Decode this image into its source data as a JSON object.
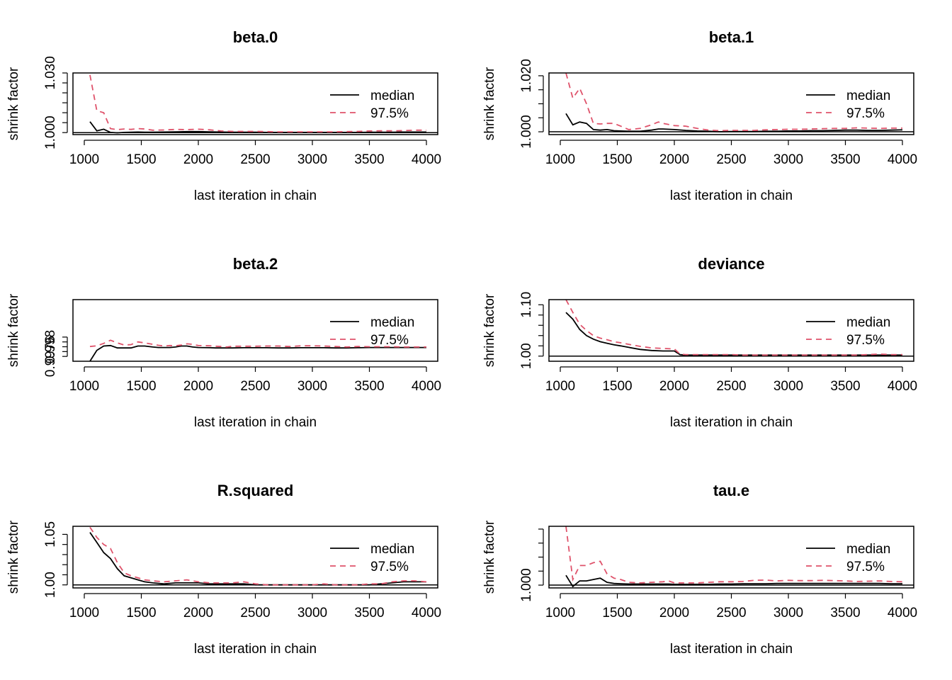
{
  "figure": {
    "colors": {
      "median": "#000000",
      "q975": "#DF536B",
      "axis": "#000000",
      "background": "#ffffff"
    }
  },
  "chart_data": [
    {
      "type": "line",
      "title": "beta.0",
      "xlabel": "last iteration in chain",
      "ylabel": "shrink factor",
      "xlim": [
        1000,
        4000
      ],
      "ylim": [
        0.999,
        1.03
      ],
      "xticks": [
        1000,
        1500,
        2000,
        2500,
        3000,
        3500,
        4000
      ],
      "yticks": [
        1.0,
        1.005,
        1.01,
        1.015,
        1.02,
        1.025,
        1.03
      ],
      "ytick_labels": [
        "1.000",
        "",
        "",
        "",
        "",
        "",
        "1.030"
      ],
      "hline": 1,
      "legend": {
        "position": "top-right",
        "entries": [
          "median",
          "97.5%"
        ]
      },
      "x": [
        1050,
        1110,
        1170,
        1230,
        1290,
        1350,
        1410,
        1470,
        1530,
        1600,
        1700,
        1800,
        1900,
        2000,
        2100,
        2200,
        2300,
        2400,
        2500,
        2600,
        2700,
        2800,
        2900,
        3000,
        3100,
        3200,
        3300,
        3400,
        3500,
        3600,
        3700,
        3800,
        3900,
        4000
      ],
      "series": [
        {
          "name": "median",
          "values": [
            1.0055,
            1.0009,
            1.0017,
            1.0001,
            0.9999,
            1.0001,
            1.0002,
            1.0003,
            1.0002,
            1.0002,
            1.0003,
            1.0004,
            1.0005,
            1.0005,
            1.0004,
            1.0003,
            1.0002,
            1.0002,
            1.0002,
            1.0001,
            1.0001,
            1.0001,
            1.0001,
            1.0001,
            1.0001,
            1.0001,
            1.0001,
            1.0001,
            1.0002,
            1.0002,
            1.0002,
            1.0003,
            1.0003,
            1.0003
          ]
        },
        {
          "name": "97.5%",
          "values": [
            1.029,
            1.011,
            1.01,
            1.002,
            1.0015,
            1.0018,
            1.0016,
            1.002,
            1.0018,
            1.0012,
            1.0013,
            1.0016,
            1.0015,
            1.0017,
            1.0014,
            1.0008,
            1.0006,
            1.0006,
            1.0006,
            1.0005,
            1.0004,
            1.0004,
            1.0004,
            1.0004,
            1.0004,
            1.0004,
            1.0005,
            1.0006,
            1.0008,
            1.0009,
            1.0009,
            1.001,
            1.0012,
            1.0012
          ]
        }
      ]
    },
    {
      "type": "line",
      "title": "beta.1",
      "xlabel": "last iteration in chain",
      "ylabel": "shrink factor",
      "xlim": [
        1000,
        4000
      ],
      "ylim": [
        0.999,
        1.021
      ],
      "xticks": [
        1000,
        1500,
        2000,
        2500,
        3000,
        3500,
        4000
      ],
      "yticks": [
        1.0,
        1.005,
        1.01,
        1.015,
        1.02
      ],
      "ytick_labels": [
        "1.000",
        "",
        "",
        "",
        "1.020"
      ],
      "hline": 1,
      "legend": {
        "position": "top-right",
        "entries": [
          "median",
          "97.5%"
        ]
      },
      "x": [
        1050,
        1110,
        1170,
        1230,
        1290,
        1350,
        1410,
        1470,
        1530,
        1600,
        1700,
        1800,
        1860,
        1900,
        2000,
        2100,
        2200,
        2300,
        2400,
        2500,
        2600,
        2700,
        2800,
        2900,
        3000,
        3100,
        3200,
        3300,
        3400,
        3500,
        3600,
        3700,
        3800,
        3900,
        4000
      ],
      "series": [
        {
          "name": "median",
          "values": [
            1.0065,
            1.0025,
            1.0035,
            1.003,
            1.0008,
            1.0006,
            1.0008,
            1.0004,
            1.0003,
            1.0002,
            1.0002,
            1.0006,
            1.001,
            1.001,
            1.0008,
            1.0005,
            1.0003,
            1.0002,
            1.0,
            1.0001,
            1.0001,
            1.0001,
            1.0002,
            1.0002,
            1.0003,
            1.0003,
            1.0004,
            1.0004,
            1.0005,
            1.0006,
            1.0006,
            1.0005,
            1.0005,
            1.0006,
            1.0007
          ]
        },
        {
          "name": "97.5%",
          "values": [
            1.021,
            1.012,
            1.0155,
            1.01,
            1.003,
            1.0028,
            1.003,
            1.003,
            1.002,
            1.0008,
            1.0012,
            1.0025,
            1.0035,
            1.003,
            1.0022,
            1.002,
            1.0012,
            1.0006,
            1.0004,
            1.0005,
            1.0005,
            1.0005,
            1.0007,
            1.0008,
            1.0009,
            1.0009,
            1.001,
            1.0011,
            1.0012,
            1.0012,
            1.0014,
            1.0013,
            1.0012,
            1.0013,
            1.0013
          ]
        }
      ]
    },
    {
      "type": "line",
      "title": "beta.2",
      "xlabel": "last iteration in chain",
      "ylabel": "shrink factor",
      "xlim": [
        1000,
        4000
      ],
      "ylim": [
        0.9974,
        0.99995
      ],
      "xticks": [
        1000,
        1500,
        2000,
        2500,
        3000,
        3500,
        4000
      ],
      "yticks": [
        0.9976,
        0.9978,
        0.998,
        0.9982,
        0.9984
      ],
      "ytick_labels": [
        "0.9976",
        "",
        "0.998",
        "",
        ""
      ],
      "hline": 1,
      "legend": {
        "position": "top-right",
        "entries": [
          "median",
          "97.5%"
        ]
      },
      "x": [
        1050,
        1110,
        1170,
        1230,
        1290,
        1350,
        1410,
        1470,
        1530,
        1600,
        1650,
        1700,
        1750,
        1800,
        1850,
        1900,
        1950,
        2000,
        2100,
        2150,
        2200,
        2250,
        2300,
        2400,
        2500,
        2600,
        2700,
        2800,
        2900,
        3000,
        3100,
        3200,
        3300,
        3400,
        3500,
        3600,
        3700,
        3800,
        3900,
        4000
      ],
      "series": [
        {
          "name": "median",
          "values": [
            0.9974,
            0.99785,
            0.99803,
            0.99805,
            0.99795,
            0.99795,
            0.99795,
            0.99803,
            0.99803,
            0.99799,
            0.99797,
            0.99797,
            0.99797,
            0.99799,
            0.99803,
            0.99803,
            0.99799,
            0.99797,
            0.99796,
            0.99795,
            0.99795,
            0.99795,
            0.99795,
            0.99796,
            0.99796,
            0.99796,
            0.99795,
            0.99795,
            0.99796,
            0.99796,
            0.99796,
            0.99795,
            0.99795,
            0.99796,
            0.99797,
            0.99797,
            0.99797,
            0.99797,
            0.99797,
            0.99797
          ]
        },
        {
          "name": "97.5%",
          "values": [
            0.99801,
            0.99804,
            0.99814,
            0.99827,
            0.99816,
            0.99807,
            0.99809,
            0.9982,
            0.99816,
            0.9981,
            0.99806,
            0.99803,
            0.99805,
            0.99804,
            0.99807,
            0.99812,
            0.9981,
            0.99805,
            0.99804,
            0.99802,
            0.99801,
            0.99799,
            0.99802,
            0.99802,
            0.99802,
            0.99803,
            0.99803,
            0.99801,
            0.99804,
            0.99804,
            0.99803,
            0.99801,
            0.99799,
            0.99801,
            0.998,
            0.998,
            0.998,
            0.99799,
            0.99799,
            0.99799
          ]
        }
      ]
    },
    {
      "type": "line",
      "title": "deviance",
      "xlabel": "last iteration in chain",
      "ylabel": "shrink factor",
      "xlim": [
        1000,
        4000
      ],
      "ylim": [
        0.99,
        1.11
      ],
      "xticks": [
        1000,
        1500,
        2000,
        2500,
        3000,
        3500,
        4000
      ],
      "yticks": [
        1.0,
        1.02,
        1.04,
        1.06,
        1.08,
        1.1
      ],
      "ytick_labels": [
        "1.00",
        "",
        "",
        "",
        "",
        "1.10"
      ],
      "hline": 1,
      "legend": {
        "position": "top-right",
        "entries": [
          "median",
          "97.5%"
        ]
      },
      "x": [
        1050,
        1110,
        1170,
        1230,
        1290,
        1350,
        1410,
        1470,
        1530,
        1600,
        1700,
        1800,
        1900,
        2000,
        2050,
        2100,
        2200,
        2300,
        2400,
        2500,
        2600,
        2700,
        2800,
        2900,
        3000,
        3100,
        3200,
        3300,
        3400,
        3500,
        3600,
        3700,
        3800,
        3900,
        4000
      ],
      "series": [
        {
          "name": "median",
          "values": [
            1.085,
            1.072,
            1.052,
            1.04,
            1.033,
            1.028,
            1.025,
            1.022,
            1.02,
            1.017,
            1.013,
            1.011,
            1.01,
            1.01,
            1.003,
            1.002,
            1.002,
            1.002,
            1.002,
            1.002,
            1.002,
            1.002,
            1.002,
            1.002,
            1.002,
            1.002,
            1.002,
            1.002,
            1.002,
            1.002,
            1.002,
            1.002,
            1.002,
            1.002,
            1.002
          ]
        },
        {
          "name": "97.5%",
          "values": [
            1.11,
            1.085,
            1.062,
            1.05,
            1.04,
            1.035,
            1.032,
            1.028,
            1.026,
            1.023,
            1.019,
            1.016,
            1.015,
            1.014,
            1.004,
            1.003,
            1.003,
            1.003,
            1.003,
            1.003,
            1.002,
            1.002,
            1.002,
            1.002,
            1.002,
            1.002,
            1.002,
            1.002,
            1.002,
            1.002,
            1.002,
            1.003,
            1.004,
            1.003,
            1.003
          ]
        }
      ]
    },
    {
      "type": "line",
      "title": "R.squared",
      "xlabel": "last iteration in chain",
      "ylabel": "shrink factor",
      "xlim": [
        1000,
        4000
      ],
      "ylim": [
        0.997,
        1.058
      ],
      "xticks": [
        1000,
        1500,
        2000,
        2500,
        3000,
        3500,
        4000
      ],
      "yticks": [
        1.0,
        1.01,
        1.02,
        1.03,
        1.04,
        1.05
      ],
      "ytick_labels": [
        "1.00",
        "",
        "",
        "",
        "",
        "1.05"
      ],
      "hline": 1,
      "legend": {
        "position": "top-right",
        "entries": [
          "median",
          "97.5%"
        ]
      },
      "x": [
        1050,
        1110,
        1170,
        1230,
        1290,
        1350,
        1410,
        1470,
        1530,
        1600,
        1700,
        1800,
        1900,
        2000,
        2100,
        2200,
        2300,
        2400,
        2500,
        2600,
        2700,
        2800,
        2900,
        3000,
        3100,
        3200,
        3300,
        3400,
        3500,
        3600,
        3700,
        3800,
        3900,
        4000
      ],
      "series": [
        {
          "name": "median",
          "values": [
            1.052,
            1.042,
            1.032,
            1.026,
            1.016,
            1.009,
            1.007,
            1.005,
            1.003,
            1.002,
            1.001,
            1.002,
            1.002,
            1.002,
            1.001,
            1.001,
            1.001,
            1.001,
            1.0,
            1.0,
            1.0,
            1.0,
            1.0,
            1.0,
            1.0,
            1.0,
            1.0,
            1.0,
            1.0,
            1.001,
            1.002,
            1.003,
            1.003,
            1.003
          ]
        },
        {
          "name": "97.5%",
          "values": [
            1.057,
            1.047,
            1.04,
            1.036,
            1.022,
            1.012,
            1.009,
            1.007,
            1.005,
            1.004,
            1.003,
            1.004,
            1.005,
            1.003,
            1.002,
            1.002,
            1.002,
            1.003,
            1.001,
            1.0,
            1.0,
            1.0,
            1.0,
            1.0,
            1.001,
            1.0,
            1.0,
            1.0,
            1.001,
            1.001,
            1.003,
            1.004,
            1.004,
            1.003
          ]
        }
      ]
    },
    {
      "type": "line",
      "title": "tau.e",
      "xlabel": "last iteration in chain",
      "ylabel": "shrink factor",
      "xlim": [
        1000,
        4000
      ],
      "ylim": [
        0.999,
        1.021
      ],
      "xticks": [
        1000,
        1500,
        2000,
        2500,
        3000,
        3500,
        4000
      ],
      "yticks": [
        1.0,
        1.005,
        1.01,
        1.015,
        1.02
      ],
      "ytick_labels": [
        "1.000",
        "",
        "",
        "",
        ""
      ],
      "hline": 1,
      "legend": {
        "position": "top-right",
        "entries": [
          "median",
          "97.5%"
        ]
      },
      "x": [
        1050,
        1110,
        1170,
        1230,
        1290,
        1350,
        1410,
        1470,
        1530,
        1600,
        1700,
        1800,
        1900,
        1950,
        2000,
        2100,
        2200,
        2300,
        2400,
        2500,
        2600,
        2700,
        2800,
        2900,
        3000,
        3100,
        3200,
        3300,
        3400,
        3500,
        3600,
        3700,
        3800,
        3900,
        4000
      ],
      "series": [
        {
          "name": "median",
          "values": [
            1.0035,
            0.9995,
            1.0015,
            1.0015,
            1.002,
            1.0025,
            1.001,
            1.0006,
            1.0005,
            1.0004,
            1.0004,
            1.0004,
            1.0004,
            1.0004,
            1.0003,
            1.0003,
            1.0003,
            1.0003,
            1.0004,
            1.0004,
            1.0005,
            1.0005,
            1.0005,
            1.0006,
            1.0006,
            1.0006,
            1.0006,
            1.0006,
            1.0006,
            1.0006,
            1.0006,
            1.0006,
            1.0006,
            1.0005,
            1.0005
          ]
        },
        {
          "name": "97.5%",
          "values": [
            1.021,
            1.002,
            1.007,
            1.007,
            1.008,
            1.0085,
            1.004,
            1.0025,
            1.002,
            1.001,
            1.0008,
            1.001,
            1.0012,
            1.0015,
            1.0008,
            1.0008,
            1.0008,
            1.001,
            1.0012,
            1.0012,
            1.0013,
            1.0017,
            1.0018,
            1.0015,
            1.0017,
            1.0016,
            1.0016,
            1.0017,
            1.0016,
            1.0015,
            1.0013,
            1.0014,
            1.0015,
            1.0013,
            1.0012
          ]
        }
      ]
    }
  ]
}
